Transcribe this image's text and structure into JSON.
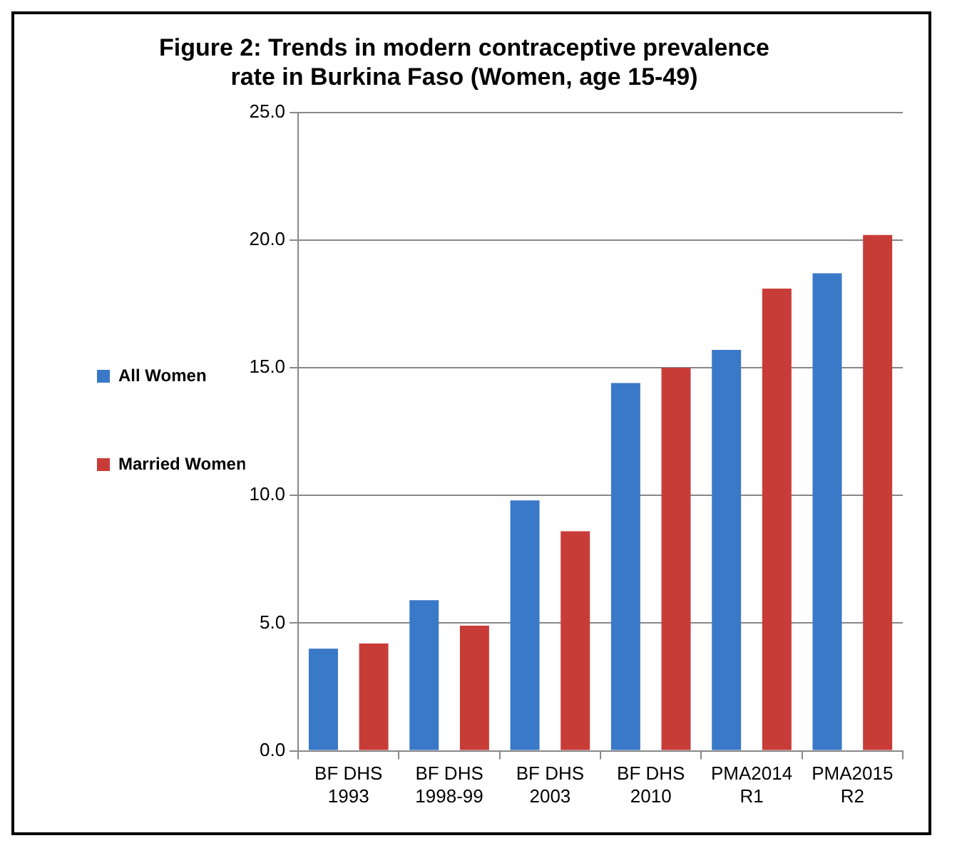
{
  "chart_data": {
    "type": "bar",
    "title": "Figure 2: Trends in modern contraceptive prevalence rate in Burkina Faso (Women, age 15-49)",
    "categories": [
      "BF DHS 1993",
      "BF DHS 1998-99",
      "BF DHS 2003",
      "BF DHS 2010",
      "PMA2014 R1",
      "PMA2015 R2"
    ],
    "series": [
      {
        "name": "All Women",
        "color": "#3a78c8",
        "values": [
          4.0,
          5.9,
          9.8,
          14.4,
          15.7,
          18.7
        ]
      },
      {
        "name": "Married Women",
        "color": "#c83c38",
        "values": [
          4.2,
          4.9,
          8.6,
          15.0,
          18.1,
          20.2
        ]
      }
    ],
    "ylim": [
      0,
      25
    ],
    "yticks": [
      {
        "value": 0,
        "label": "0.0"
      },
      {
        "value": 5,
        "label": "5.0"
      },
      {
        "value": 10,
        "label": "10.0"
      },
      {
        "value": 15,
        "label": "15.0"
      },
      {
        "value": 20,
        "label": "20.0"
      },
      {
        "value": 25,
        "label": "25.0"
      }
    ],
    "grid": "y",
    "legend": "left"
  }
}
